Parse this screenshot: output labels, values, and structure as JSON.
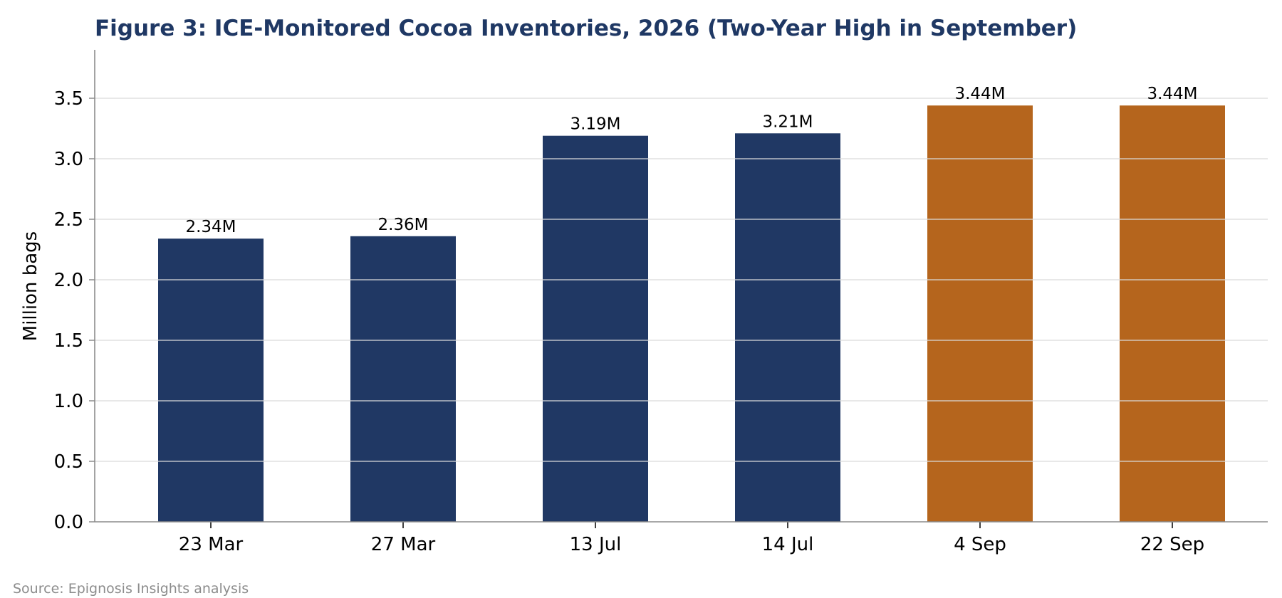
{
  "title": "Figure 3: ICE-Monitored Cocoa Inventories, 2026 (Two-Year High in September)",
  "source": "Source: Epignosis Insights analysis",
  "colors": {
    "base": "#203864",
    "highlight": "#b5651d",
    "title": "#1f3864",
    "grid": "#d9d9d9",
    "axis": "#8c8c8c"
  },
  "chart_data": {
    "type": "bar",
    "title": "Figure 3: ICE-Monitored Cocoa Inventories, 2026 (Two-Year High in September)",
    "xlabel": "",
    "ylabel": "Million bags",
    "categories": [
      "23 Mar",
      "27 Mar",
      "13 Jul",
      "14 Jul",
      "4 Sep",
      "22 Sep"
    ],
    "values": [
      2.34,
      2.36,
      3.19,
      3.21,
      3.44,
      3.44
    ],
    "data_labels": [
      "2.34M",
      "2.36M",
      "3.19M",
      "3.21M",
      "3.44M",
      "3.44M"
    ],
    "bar_colors": [
      "#203864",
      "#203864",
      "#203864",
      "#203864",
      "#b5651d",
      "#b5651d"
    ],
    "ylim": [
      0,
      3.9
    ],
    "yticks": [
      0.0,
      0.5,
      1.0,
      1.5,
      2.0,
      2.5,
      3.0,
      3.5
    ],
    "ytick_labels": [
      "0.0",
      "0.5",
      "1.0",
      "1.5",
      "2.0",
      "2.5",
      "3.0",
      "3.5"
    ],
    "grid": "horizontal",
    "legend": "none"
  }
}
